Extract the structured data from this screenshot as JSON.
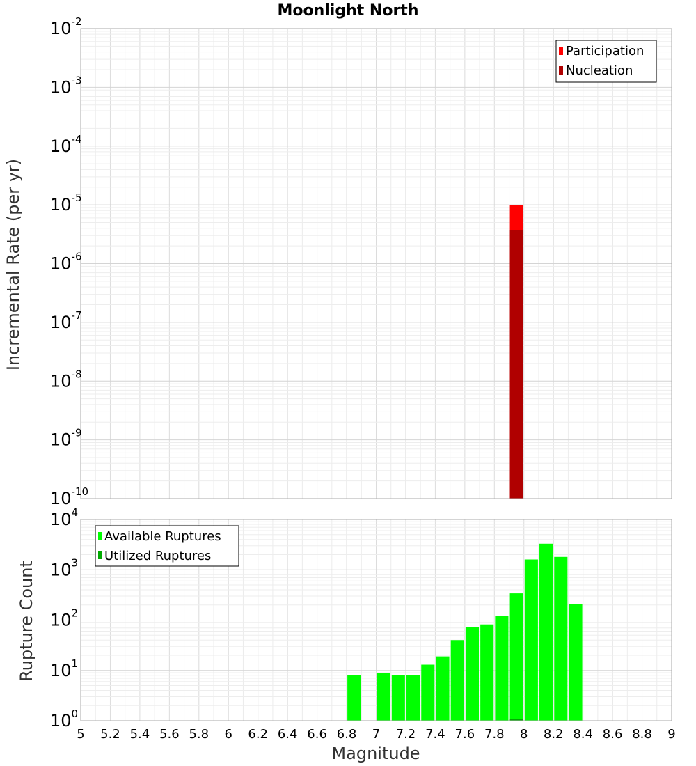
{
  "chart_data": [
    {
      "type": "bar",
      "panel": "top",
      "title": "Moonlight North",
      "xlabel": "",
      "ylabel": "Incremental Rate (per yr)",
      "xlim": [
        5,
        9
      ],
      "ylim": [
        1e-10,
        0.01
      ],
      "yscale": "log",
      "y_tick_exponents": [
        -10,
        -9,
        -8,
        -7,
        -6,
        -5,
        -4,
        -3,
        -2
      ],
      "grid": true,
      "legend_position": "top-right",
      "series": [
        {
          "name": "Participation",
          "color": "#ff0000",
          "bars": [
            {
              "x": 7.95,
              "y": 1e-05
            }
          ]
        },
        {
          "name": "Nucleation",
          "color": "#b00000",
          "bars": [
            {
              "x": 7.95,
              "y": 3.7e-06
            }
          ]
        }
      ]
    },
    {
      "type": "bar",
      "panel": "bottom",
      "xlabel": "Magnitude",
      "ylabel": "Rupture Count",
      "xlim": [
        5,
        9
      ],
      "ylim": [
        1,
        10000
      ],
      "yscale": "log",
      "y_tick_exponents": [
        0,
        1,
        2,
        3,
        4
      ],
      "x_ticks": [
        "5",
        "5.2",
        "5.4",
        "5.6",
        "5.8",
        "6",
        "6.2",
        "6.4",
        "6.6",
        "6.8",
        "7",
        "7.2",
        "7.4",
        "7.6",
        "7.8",
        "8",
        "8.2",
        "8.4",
        "8.6",
        "8.8",
        "9"
      ],
      "grid": true,
      "legend_position": "top-left",
      "series": [
        {
          "name": "Available Ruptures",
          "color": "#00ff00",
          "bars": [
            {
              "x": 6.85,
              "y": 8
            },
            {
              "x": 7.05,
              "y": 9
            },
            {
              "x": 7.15,
              "y": 8
            },
            {
              "x": 7.25,
              "y": 8
            },
            {
              "x": 7.35,
              "y": 13
            },
            {
              "x": 7.45,
              "y": 19
            },
            {
              "x": 7.55,
              "y": 40
            },
            {
              "x": 7.65,
              "y": 72
            },
            {
              "x": 7.75,
              "y": 82
            },
            {
              "x": 7.85,
              "y": 120
            },
            {
              "x": 7.95,
              "y": 340
            },
            {
              "x": 8.05,
              "y": 1600
            },
            {
              "x": 8.15,
              "y": 3300
            },
            {
              "x": 8.25,
              "y": 1800
            },
            {
              "x": 8.35,
              "y": 210
            }
          ]
        },
        {
          "name": "Utilized Ruptures",
          "color": "#00aa00",
          "bars": [
            {
              "x": 7.95,
              "y": 1.1
            }
          ]
        }
      ]
    }
  ]
}
